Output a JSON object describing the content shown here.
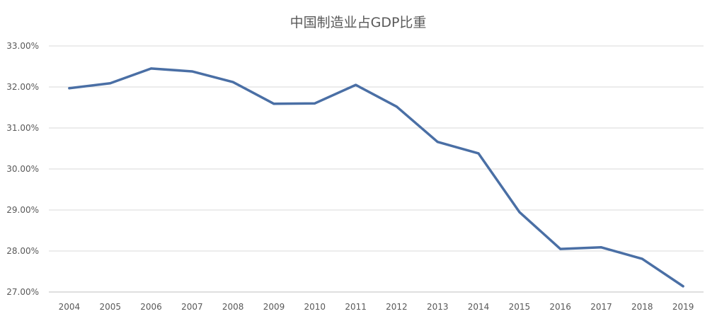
{
  "chart_data": {
    "type": "line",
    "title": "中国制造业占GDP比重",
    "xlabel": "",
    "ylabel": "",
    "categories": [
      "2004",
      "2005",
      "2006",
      "2007",
      "2008",
      "2009",
      "2010",
      "2011",
      "2012",
      "2013",
      "2014",
      "2015",
      "2016",
      "2017",
      "2018",
      "2019"
    ],
    "series": [
      {
        "name": "制造业占GDP比重",
        "values": [
          31.97,
          32.09,
          32.45,
          32.38,
          32.12,
          31.59,
          31.6,
          32.05,
          31.52,
          30.66,
          30.38,
          28.95,
          28.05,
          28.09,
          27.81,
          27.14
        ],
        "color": "#4a6fa5"
      }
    ],
    "ylim": [
      27,
      33
    ],
    "yticks": [
      "27.00%",
      "28.00%",
      "29.00%",
      "30.00%",
      "31.00%",
      "32.00%",
      "33.00%"
    ],
    "grid": true,
    "legend": "none"
  }
}
